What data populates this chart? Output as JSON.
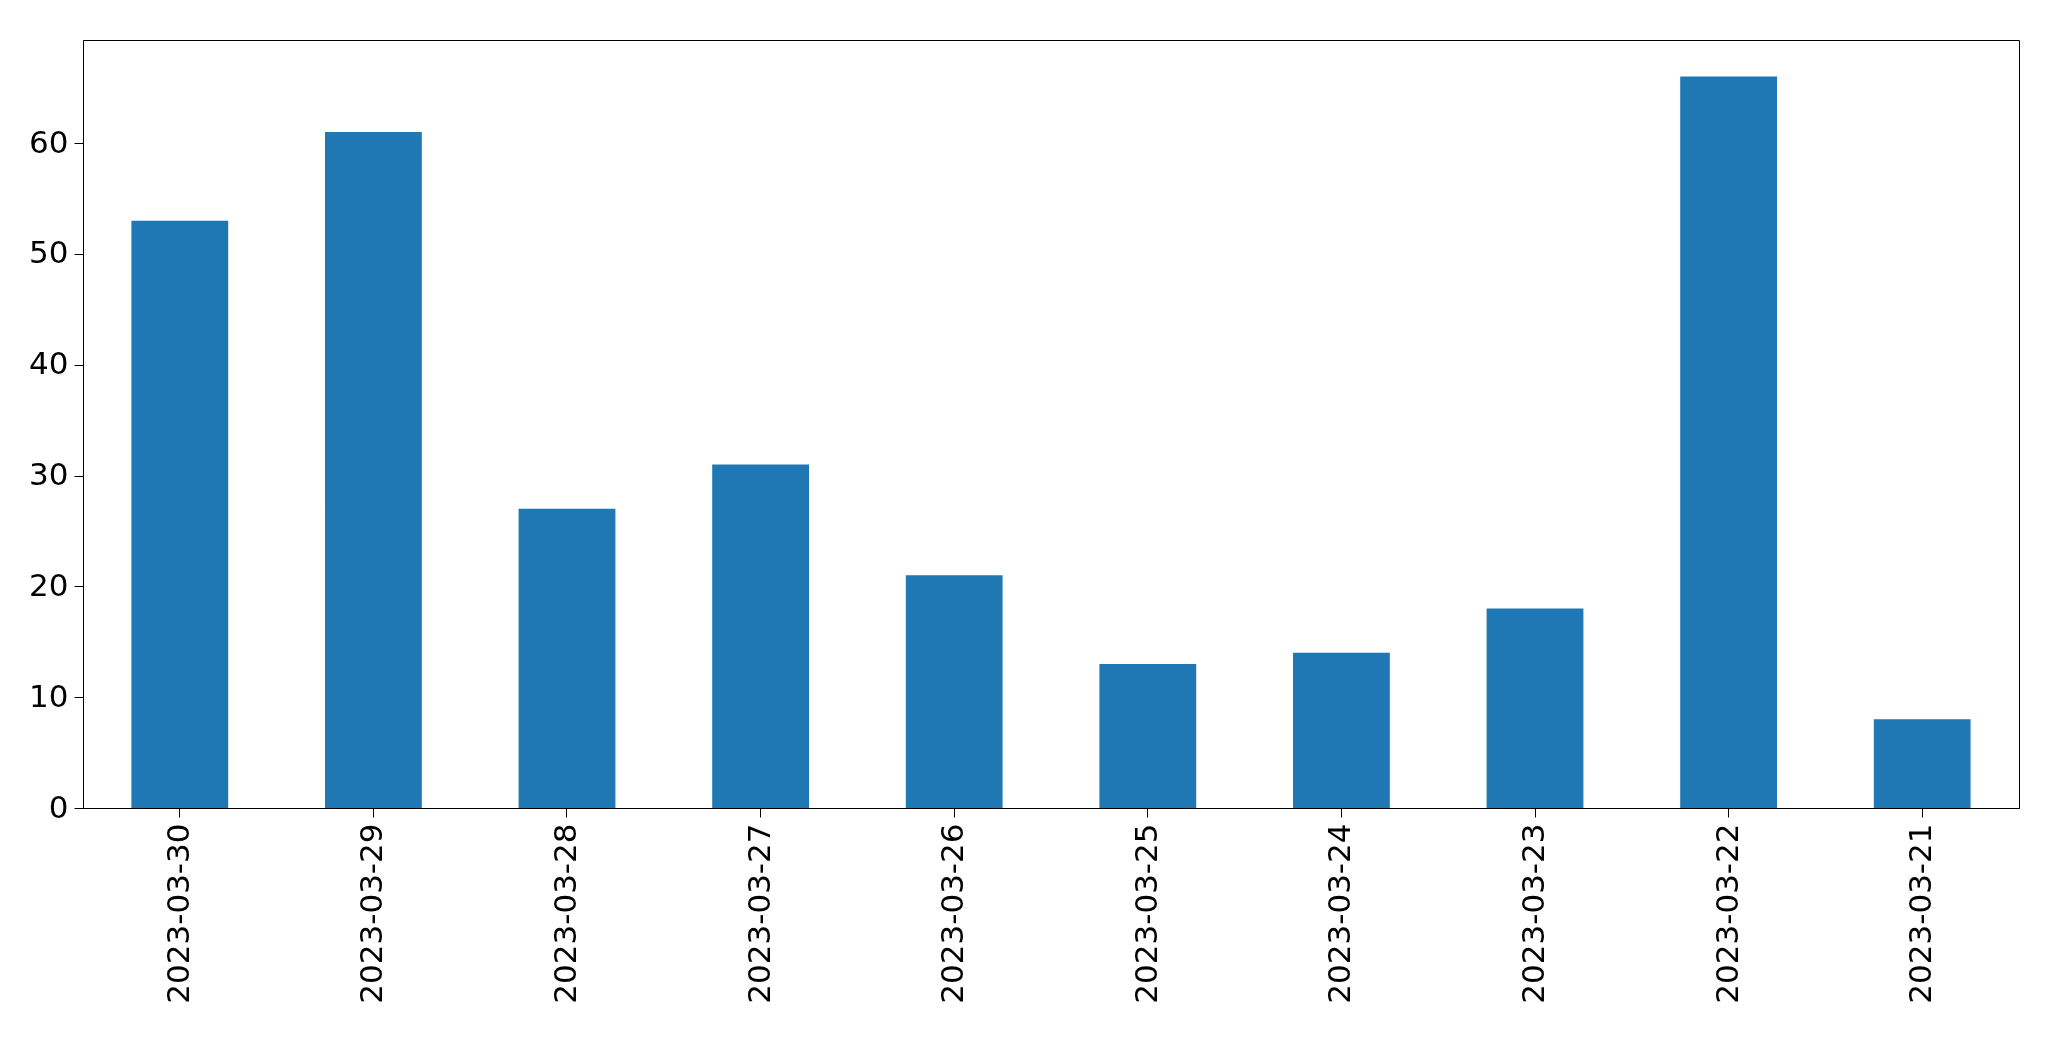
{
  "chart_data": {
    "type": "bar",
    "categories": [
      "2023-03-30",
      "2023-03-29",
      "2023-03-28",
      "2023-03-27",
      "2023-03-26",
      "2023-03-25",
      "2023-03-24",
      "2023-03-23",
      "2023-03-22",
      "2023-03-21"
    ],
    "values": [
      53,
      61,
      27,
      31,
      21,
      13,
      14,
      18,
      66,
      8
    ],
    "color": "#1f77b4",
    "ylim": [
      0,
      69.3
    ],
    "yticks": [
      0,
      10,
      20,
      30,
      40,
      50,
      60
    ],
    "grid": false
  }
}
